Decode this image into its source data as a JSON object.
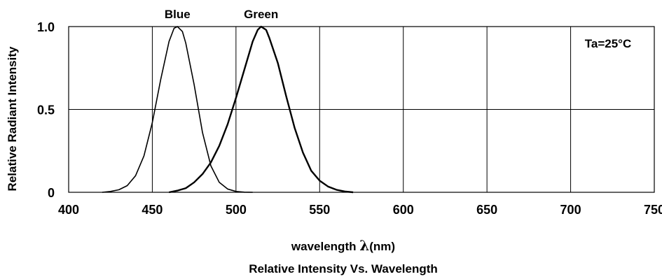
{
  "chart_data": {
    "type": "line",
    "title": "Relative Intensity Vs. Wavelength",
    "xlabel_prefix": "wavelength ",
    "xlabel_symbol": "λ",
    "xlabel_suffix": "(nm)",
    "ylabel": "Relative Radiant Intensity",
    "xlim": [
      400,
      750
    ],
    "ylim": [
      0,
      1.0
    ],
    "x_ticks": [
      400,
      450,
      500,
      550,
      600,
      650,
      700,
      750
    ],
    "y_ticks": [
      0,
      0.5,
      1.0
    ],
    "y_tick_labels": [
      "0",
      "0.5",
      "1.0"
    ],
    "grid": true,
    "annotation": "Ta=25°C",
    "series": [
      {
        "name": "Blue",
        "color": "#000000",
        "x": [
          420,
          425,
          430,
          435,
          440,
          445,
          450,
          455,
          460,
          463,
          465,
          468,
          470,
          475,
          480,
          485,
          490,
          495,
          500,
          505,
          510
        ],
        "y": [
          0.0,
          0.005,
          0.015,
          0.04,
          0.1,
          0.22,
          0.42,
          0.68,
          0.91,
          0.99,
          1.0,
          0.97,
          0.9,
          0.65,
          0.36,
          0.16,
          0.06,
          0.02,
          0.005,
          0.001,
          0.0
        ]
      },
      {
        "name": "Green",
        "color": "#000000",
        "x": [
          460,
          465,
          470,
          475,
          480,
          485,
          490,
          495,
          500,
          505,
          510,
          513,
          515,
          518,
          520,
          525,
          530,
          535,
          540,
          545,
          550,
          555,
          560,
          565,
          570
        ],
        "y": [
          0.0,
          0.01,
          0.025,
          0.06,
          0.11,
          0.18,
          0.28,
          0.41,
          0.57,
          0.74,
          0.91,
          0.98,
          1.0,
          0.98,
          0.93,
          0.78,
          0.58,
          0.39,
          0.24,
          0.13,
          0.07,
          0.035,
          0.015,
          0.005,
          0.0
        ]
      }
    ]
  }
}
